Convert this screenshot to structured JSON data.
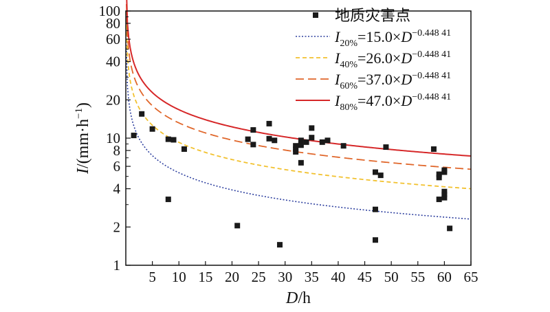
{
  "chart_data": {
    "type": "scatter",
    "xlabel": {
      "var": "D",
      "unit": "/h"
    },
    "ylabel": {
      "var": "I",
      "unit_prefix": "/(mm·h",
      "unit_exp": "−1",
      "unit_suffix": ")"
    },
    "xlim": [
      0,
      65
    ],
    "ylim": [
      1,
      100
    ],
    "yscale": "log",
    "x_ticks": [
      "5",
      "10",
      "15",
      "20",
      "25",
      "30",
      "35",
      "40",
      "45",
      "50",
      "55",
      "60",
      "65"
    ],
    "y_ticks": [
      {
        "v": 1,
        "label": "1"
      },
      {
        "v": 2,
        "label": "2"
      },
      {
        "v": 4,
        "label": "4"
      },
      {
        "v": 6,
        "label": "6"
      },
      {
        "v": 8,
        "label": "8"
      },
      {
        "v": 10,
        "label": "10"
      },
      {
        "v": 20,
        "label": "20"
      },
      {
        "v": 40,
        "label": "40"
      },
      {
        "v": 60,
        "label": "60"
      },
      {
        "v": 80,
        "label": "80"
      },
      {
        "v": 100,
        "label": "100"
      }
    ],
    "grid": false,
    "legend_position": "top-right",
    "scatter": {
      "name": "地质灾害点",
      "color": "#1a1a1a",
      "points": [
        [
          1.5,
          10.5
        ],
        [
          3,
          15.5
        ],
        [
          5,
          11.8
        ],
        [
          8,
          9.8
        ],
        [
          9,
          9.7
        ],
        [
          11,
          8.2
        ],
        [
          8,
          3.3
        ],
        [
          21,
          2.05
        ],
        [
          23,
          9.8
        ],
        [
          24,
          11.6
        ],
        [
          24,
          8.9
        ],
        [
          27,
          13
        ],
        [
          27,
          9.9
        ],
        [
          28,
          9.6
        ],
        [
          29,
          1.45
        ],
        [
          32,
          8.7
        ],
        [
          32,
          8.2
        ],
        [
          32,
          7.8
        ],
        [
          33,
          9.6
        ],
        [
          33,
          8.8
        ],
        [
          33,
          6.4
        ],
        [
          34,
          9.3
        ],
        [
          35,
          12
        ],
        [
          35,
          10.1
        ],
        [
          37,
          9.3
        ],
        [
          38,
          9.6
        ],
        [
          41,
          8.7
        ],
        [
          47,
          5.4
        ],
        [
          48,
          5.1
        ],
        [
          47,
          2.75
        ],
        [
          47,
          1.58
        ],
        [
          49,
          8.5
        ],
        [
          58,
          8.2
        ],
        [
          59,
          5.2
        ],
        [
          59,
          4.9
        ],
        [
          59,
          3.3
        ],
        [
          60,
          5.4
        ],
        [
          60,
          5.6
        ],
        [
          60,
          3.8
        ],
        [
          60,
          3.6
        ],
        [
          60,
          3.4
        ],
        [
          61,
          1.95
        ]
      ]
    },
    "series": [
      {
        "sub": "20%",
        "coef": "15.0",
        "exponent": "−0.448 41",
        "a": 15.0,
        "b": -0.44841,
        "color": "#2c3e9e",
        "dash": "2,2.5",
        "width": 1.6
      },
      {
        "sub": "40%",
        "coef": "26.0",
        "exponent": "−0.448 41",
        "a": 26.0,
        "b": -0.44841,
        "color": "#f2c12e",
        "dash": "6,4",
        "width": 1.8
      },
      {
        "sub": "60%",
        "coef": "37.0",
        "exponent": "−0.448 41",
        "a": 37.0,
        "b": -0.44841,
        "color": "#e0662a",
        "dash": "12,6",
        "width": 1.8
      },
      {
        "sub": "80%",
        "coef": "47.0",
        "exponent": "−0.448 41",
        "a": 47.0,
        "b": -0.44841,
        "color": "#d62728",
        "dash": "",
        "width": 2.0
      }
    ],
    "legend": {
      "prefix": "I",
      "times": "×D"
    }
  }
}
